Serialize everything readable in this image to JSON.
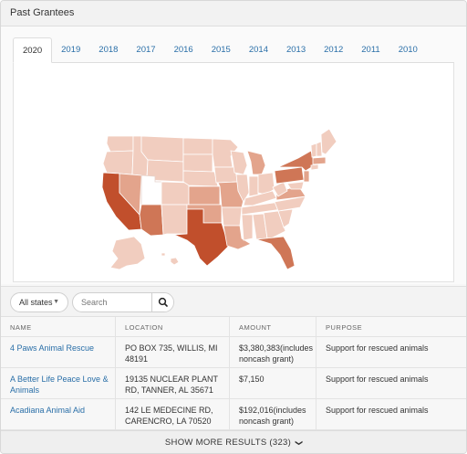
{
  "header": {
    "title": "Past Grantees"
  },
  "tabs": [
    {
      "label": "2020",
      "active": true
    },
    {
      "label": "2019"
    },
    {
      "label": "2018"
    },
    {
      "label": "2017"
    },
    {
      "label": "2016"
    },
    {
      "label": "2015"
    },
    {
      "label": "2014"
    },
    {
      "label": "2013"
    },
    {
      "label": "2012"
    },
    {
      "label": "2011"
    },
    {
      "label": "2010"
    }
  ],
  "map": {
    "colors": {
      "light": "#f1cdbf",
      "mid": "#e3a48c",
      "dark": "#cf7656",
      "darkest": "#c14f2c",
      "none": "#ffffff",
      "border": "#ffffff"
    }
  },
  "filters": {
    "state_label": "All states",
    "search_placeholder": "Search"
  },
  "table": {
    "headers": [
      "NAME",
      "LOCATION",
      "AMOUNT",
      "PURPOSE"
    ],
    "rows": [
      {
        "name": "4 Paws Animal Rescue",
        "location": "PO BOX 735, WILLIS, MI 48191",
        "amount": "$3,380,383(includes noncash grant)",
        "purpose": "Support for rescued animals"
      },
      {
        "name": "A Better Life Peace Love & Animals",
        "location": "19135 NUCLEAR PLANT RD, TANNER, AL 35671",
        "amount": "$7,150",
        "purpose": "Support for rescued animals"
      },
      {
        "name": "Acadiana Animal Aid",
        "location": "142 LE MEDECINE RD, CARENCRO, LA 70520",
        "amount": "$192,016(includes noncash grant)",
        "purpose": "Support for rescued animals"
      }
    ]
  },
  "show_more": {
    "label": "SHOW MORE RESULTS (323)"
  }
}
